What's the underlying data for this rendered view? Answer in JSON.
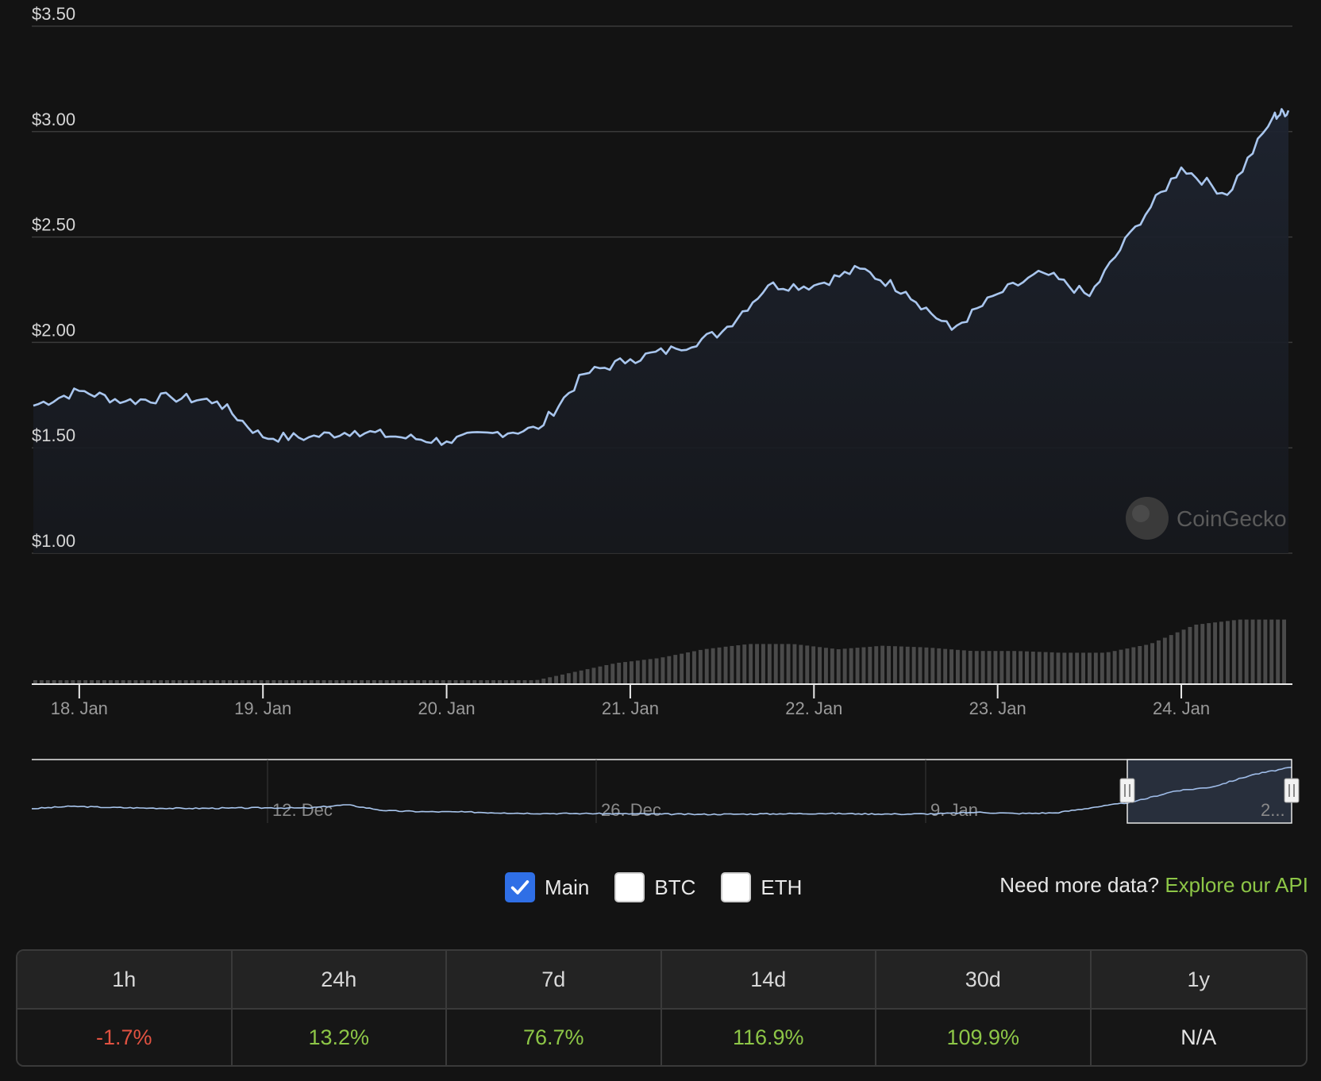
{
  "chart_data": {
    "type": "line",
    "title": "",
    "x": [
      "2025-01-17T18:00",
      "2025-01-18T00:00",
      "2025-01-18T06:00",
      "2025-01-18T12:00",
      "2025-01-18T18:00",
      "2025-01-19T00:00",
      "2025-01-19T06:00",
      "2025-01-19T12:00",
      "2025-01-19T18:00",
      "2025-01-20T00:00",
      "2025-01-20T06:00",
      "2025-01-20T12:00",
      "2025-01-20T18:00",
      "2025-01-21T00:00",
      "2025-01-21T06:00",
      "2025-01-21T12:00",
      "2025-01-21T18:00",
      "2025-01-22T00:00",
      "2025-01-22T06:00",
      "2025-01-22T12:00",
      "2025-01-22T18:00",
      "2025-01-23T00:00",
      "2025-01-23T06:00",
      "2025-01-23T12:00",
      "2025-01-23T18:00",
      "2025-01-24T00:00",
      "2025-01-24T06:00",
      "2025-01-24T12:00",
      "2025-01-24T14:00"
    ],
    "series": [
      {
        "values": [
          1.7,
          1.77,
          1.72,
          1.74,
          1.72,
          1.55,
          1.55,
          1.58,
          1.55,
          1.53,
          1.57,
          1.59,
          1.85,
          1.92,
          1.97,
          2.05,
          2.27,
          2.27,
          2.35,
          2.24,
          2.06,
          2.23,
          2.33,
          2.22,
          2.55,
          2.83,
          2.7,
          3.07,
          3.1
        ]
      }
    ],
    "volume_relative": [
      0.03,
      0.03,
      0.03,
      0.03,
      0.03,
      0.04,
      0.04,
      0.04,
      0.03,
      0.03,
      0.02,
      0.02,
      0.13,
      0.24,
      0.3,
      0.4,
      0.46,
      0.46,
      0.4,
      0.44,
      0.42,
      0.38,
      0.38,
      0.36,
      0.36,
      0.46,
      0.68,
      0.74,
      0.74
    ],
    "ylim": [
      1.0,
      3.5
    ],
    "y_ticks": [
      "$1.00",
      "$1.50",
      "$2.00",
      "$2.50",
      "$3.00",
      "$3.50"
    ],
    "x_ticks": [
      "18. Jan",
      "19. Jan",
      "20. Jan",
      "21. Jan",
      "22. Jan",
      "23. Jan",
      "24. Jan"
    ],
    "grid": true,
    "line_color": "#a9c6ee",
    "navigator": {
      "tick_labels": [
        "12. Dec",
        "26. Dec",
        "9. Jan",
        "2..."
      ],
      "values": [
        1.72,
        1.8,
        1.76,
        1.74,
        1.73,
        1.74,
        1.75,
        1.74,
        1.85,
        1.65,
        1.62,
        1.61,
        1.58,
        1.56,
        1.56,
        1.55,
        1.54,
        1.53,
        1.54,
        1.55,
        1.56,
        1.55,
        1.54,
        1.55,
        1.6,
        1.56,
        1.58,
        1.77,
        1.95,
        2.3,
        2.45,
        2.85,
        3.1
      ]
    }
  },
  "watermark": "CoinGecko",
  "toggles": [
    {
      "label": "Main",
      "checked": true
    },
    {
      "label": "BTC",
      "checked": false
    },
    {
      "label": "ETH",
      "checked": false
    }
  ],
  "api_promo": {
    "prefix": "Need more data? ",
    "link": "Explore our API"
  },
  "performance": {
    "headers": [
      "1h",
      "24h",
      "7d",
      "14d",
      "30d",
      "1y"
    ],
    "values": [
      "-1.7%",
      "13.2%",
      "76.7%",
      "116.9%",
      "109.9%",
      "N/A"
    ],
    "colors": {
      "negative": "#e15241",
      "positive": "#8dc647",
      "neutral": "#e6e6e6"
    }
  }
}
